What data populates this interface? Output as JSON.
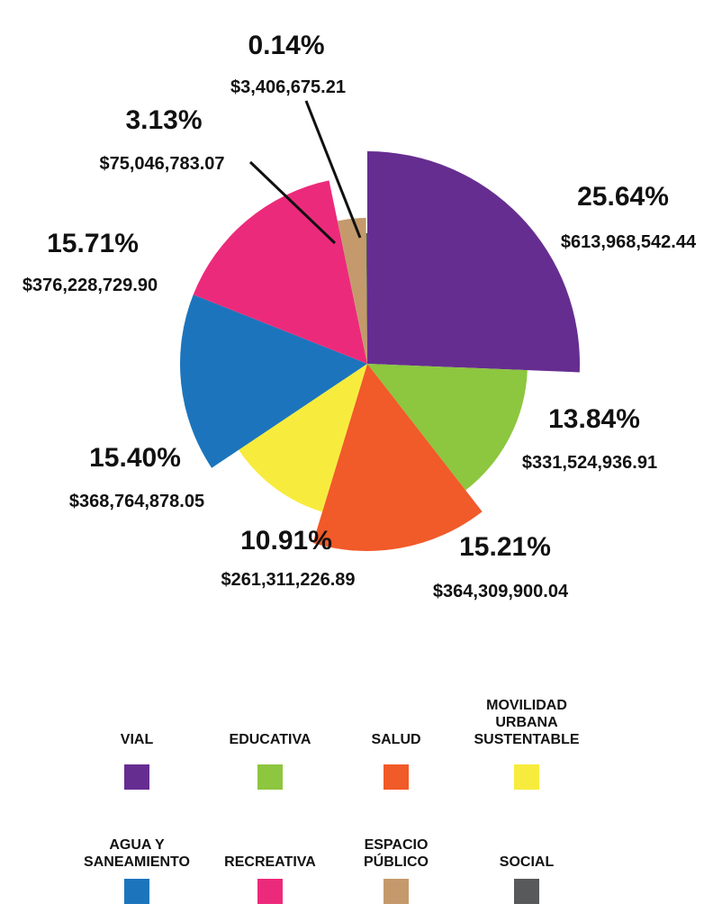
{
  "chart_data": {
    "type": "pie",
    "slices": [
      {
        "name": "VIAL",
        "percent": "25.64%",
        "amount": "$613,968,542.44",
        "value": 613968542.44,
        "color": "#662d91"
      },
      {
        "name": "EDUCATIVA",
        "percent": "13.84%",
        "amount": "$331,524,936.91",
        "value": 331524936.91,
        "color": "#8dc63f"
      },
      {
        "name": "SALUD",
        "percent": "15.21%",
        "amount": "$364,309,900.04",
        "value": 364309900.04,
        "color": "#f15a29"
      },
      {
        "name": "MOVILIDAD URBANA SUSTENTABLE",
        "percent": "10.91%",
        "amount": "$261,311,226.89",
        "value": 261311226.89,
        "color": "#f7ec3d"
      },
      {
        "name": "AGUA Y SANEAMIENTO",
        "percent": "15.40%",
        "amount": "$368,764,878.05",
        "value": 368764878.05,
        "color": "#1c75bc"
      },
      {
        "name": "RECREATIVA",
        "percent": "15.71%",
        "amount": "$376,228,729.90",
        "value": 376228729.9,
        "color": "#ec2a7b"
      },
      {
        "name": "ESPACIO PÚBLICO",
        "percent": "3.13%",
        "amount": "$75,046,783.07",
        "value": 75046783.07,
        "color": "#c49a6c"
      },
      {
        "name": "SOCIAL",
        "percent": "0.14%",
        "amount": "$3,406,675.21",
        "value": 3406675.21,
        "color": "#58595b"
      }
    ]
  },
  "legend": [
    {
      "lines": [
        "VIAL"
      ],
      "color": "#662d91"
    },
    {
      "lines": [
        "EDUCATIVA"
      ],
      "color": "#8dc63f"
    },
    {
      "lines": [
        "SALUD"
      ],
      "color": "#f15a29"
    },
    {
      "lines": [
        "MOVILIDAD",
        "URBANA",
        "SUSTENTABLE"
      ],
      "color": "#f7ec3d"
    },
    {
      "lines": [
        "AGUA Y",
        "SANEAMIENTO"
      ],
      "color": "#1c75bc"
    },
    {
      "lines": [
        "RECREATIVA"
      ],
      "color": "#ec2a7b"
    },
    {
      "lines": [
        "ESPACIO",
        "PÚBLICO"
      ],
      "color": "#c49a6c"
    },
    {
      "lines": [
        "SOCIAL"
      ],
      "color": "#58595b"
    }
  ]
}
